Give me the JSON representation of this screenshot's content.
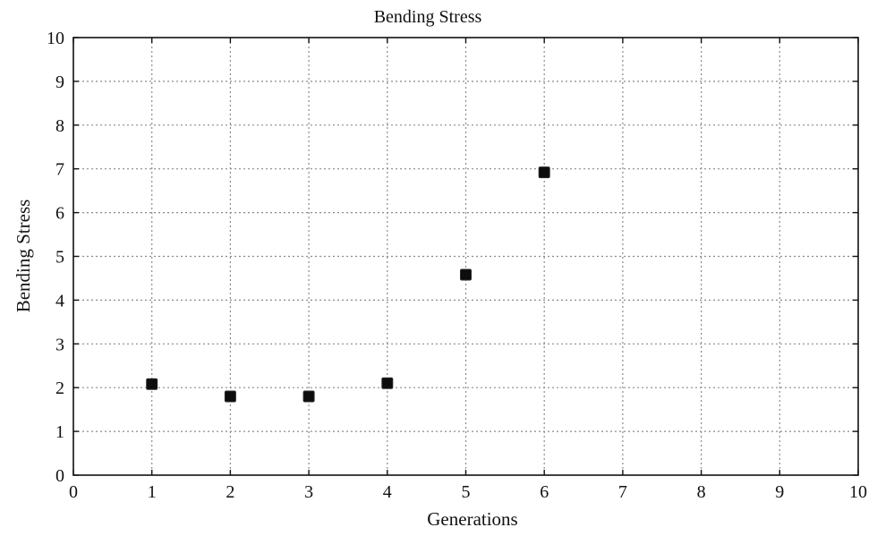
{
  "chart_data": {
    "type": "scatter",
    "title": "Bending Stress",
    "xlabel": "Generations",
    "ylabel": "Bending Stress",
    "xlim": [
      0,
      10
    ],
    "ylim": [
      0,
      10
    ],
    "x_ticks": [
      "0",
      "1",
      "2",
      "3",
      "4",
      "5",
      "6",
      "7",
      "8",
      "9",
      "10"
    ],
    "y_ticks": [
      "0",
      "1",
      "2",
      "3",
      "4",
      "5",
      "6",
      "7",
      "8",
      "9",
      "10"
    ],
    "grid": true,
    "series": [
      {
        "x": [
          1,
          2,
          3,
          4,
          5,
          6
        ],
        "y": [
          2.08,
          1.8,
          1.8,
          2.1,
          4.58,
          6.92
        ]
      }
    ],
    "colors": {
      "marker": "#0d0d0d",
      "grid": "#8a8a8a",
      "axis": "#111111"
    }
  }
}
